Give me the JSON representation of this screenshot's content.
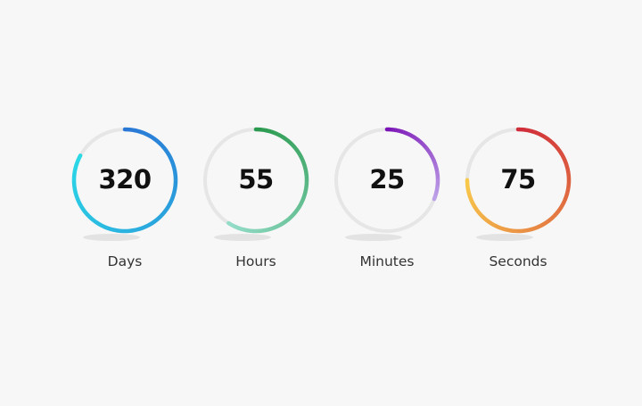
{
  "timers": [
    {
      "value": "320",
      "label": "Days",
      "progress": 0.83,
      "colors": [
        "#2a78d6",
        "#2ad8e6"
      ]
    },
    {
      "value": "55",
      "label": "Hours",
      "progress": 0.59,
      "colors": [
        "#2a9a4e",
        "#93dcc8"
      ]
    },
    {
      "value": "25",
      "label": "Minutes",
      "progress": 0.31,
      "colors": [
        "#7a12b6",
        "#bca0e8"
      ]
    },
    {
      "value": "75",
      "label": "Seconds",
      "progress": 0.75,
      "colors": [
        "#d02c3a",
        "#f8c84a"
      ]
    }
  ],
  "track_color": "#e6e6e6"
}
